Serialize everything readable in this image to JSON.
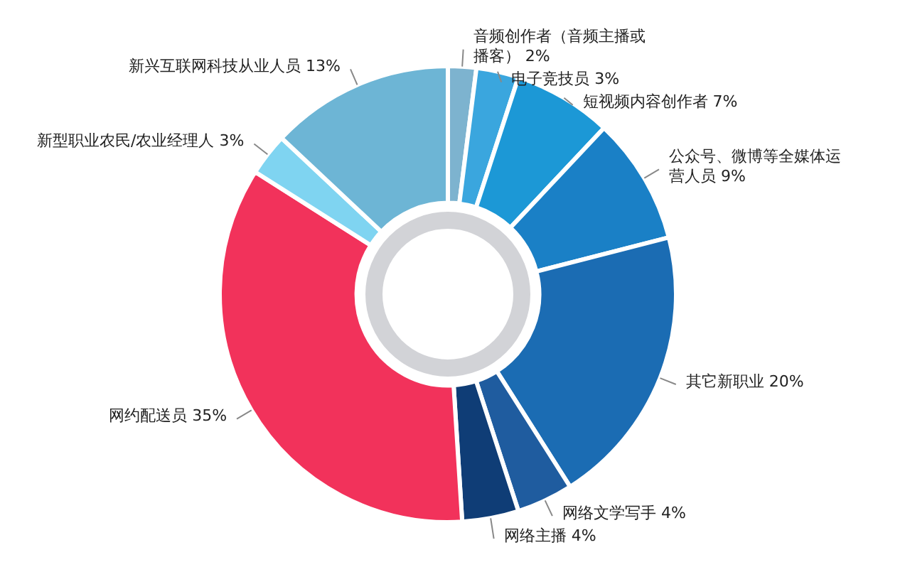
{
  "chart_data": {
    "type": "donut",
    "categories": [
      "音频创作者（音频主播或播客）",
      "电子竞技员",
      "短视频内容创作者",
      "公众号、微博等全媒体运营人员",
      "其它新职业",
      "网络文学写手",
      "网络主播",
      "网约配送员",
      "新型职业农民/农业经理人",
      "新兴互联网科技从业人员"
    ],
    "values": [
      2,
      3,
      7,
      9,
      20,
      4,
      4,
      35,
      3,
      13
    ],
    "value_labels": [
      "2%",
      "3%",
      "7%",
      "9%",
      "20%",
      "4%",
      "4%",
      "35%",
      "3%",
      "13%"
    ],
    "colors": [
      "#7db3cf",
      "#3aa6de",
      "#1c98d6",
      "#1a80c6",
      "#1b6cb3",
      "#1f5c9f",
      "#0f3d76",
      "#f2325b",
      "#7fd4f1",
      "#6db5d5"
    ],
    "legend": false
  }
}
